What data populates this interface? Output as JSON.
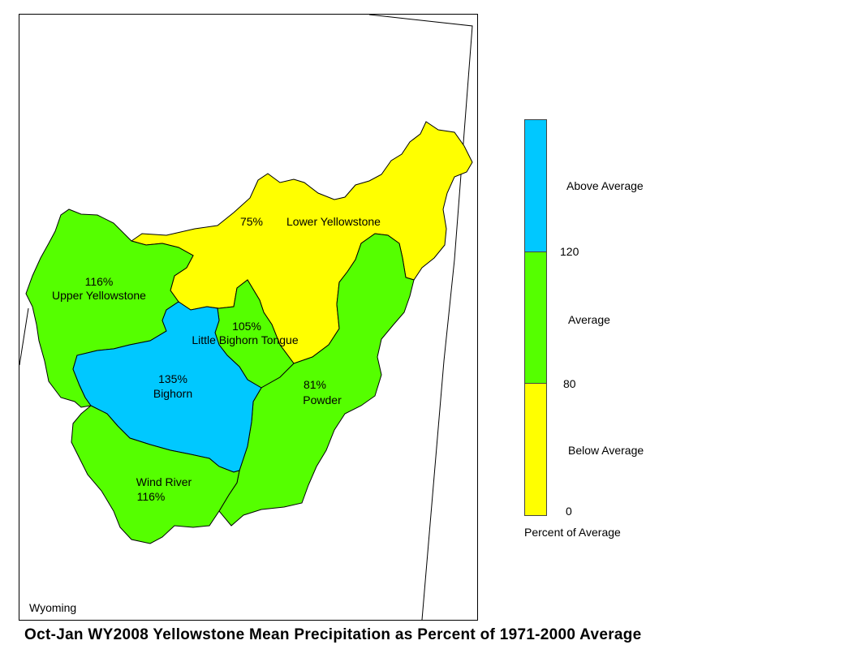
{
  "map": {
    "state_label": "Wyoming",
    "basins": [
      {
        "name": "Lower Yellowstone",
        "percent": "75%",
        "category": "below"
      },
      {
        "name": "Upper Yellowstone",
        "percent": "116%",
        "category": "average"
      },
      {
        "name": "Little Bighorn Tongue",
        "percent": "105%",
        "category": "average"
      },
      {
        "name": "Bighorn",
        "percent": "135%",
        "category": "above"
      },
      {
        "name": "Powder",
        "percent": "81%",
        "category": "average"
      },
      {
        "name": "Wind River",
        "percent": "116%",
        "category": "average"
      }
    ]
  },
  "legend": {
    "above_label": "Above Average",
    "average_label": "Average",
    "below_label": "Below Average",
    "tick_120": "120",
    "tick_80": "80",
    "tick_0": "0",
    "caption": "Percent of Average",
    "colors": {
      "above": "#00c8ff",
      "average": "#55ff00",
      "below": "#ffff00"
    }
  },
  "title": "Oct-Jan WY2008 Yellowstone Mean Precipitation as Percent of 1971-2000 Average"
}
